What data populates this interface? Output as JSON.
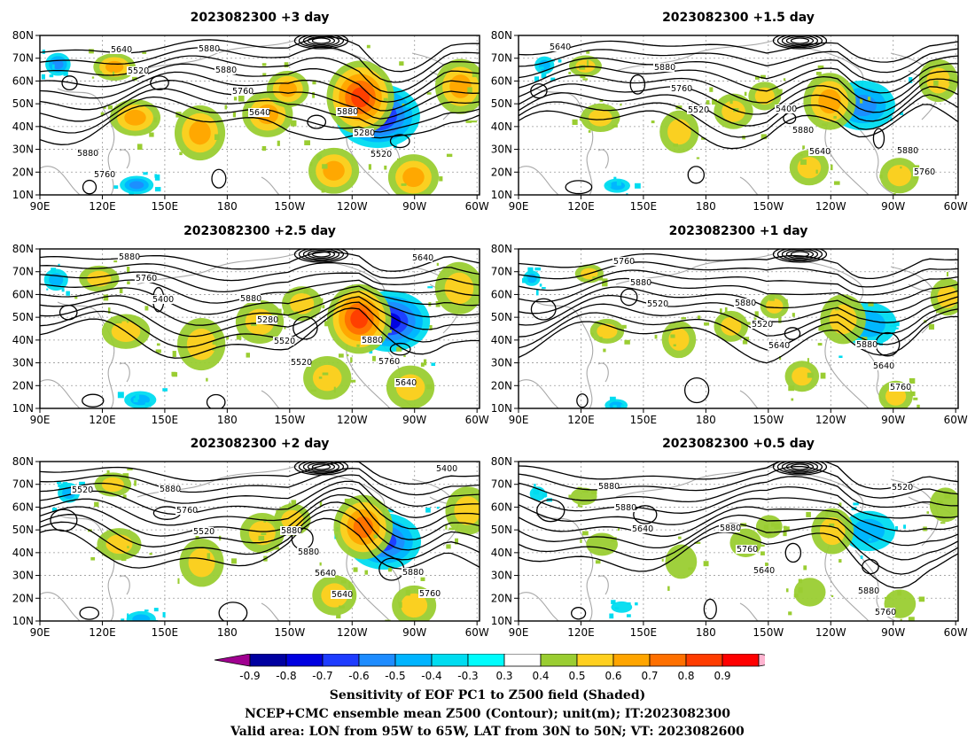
{
  "panels": [
    {
      "title": "2023082300 +3 day",
      "strength": 1.0,
      "seed": 3,
      "contour_labels": [
        "5520",
        "5640",
        "5520",
        "5640",
        "5760",
        "5280",
        "5760",
        "5880",
        "5880",
        "5880",
        "5880"
      ]
    },
    {
      "title": "2023082300 +1.5 day",
      "strength": 0.55,
      "seed": 7,
      "contour_labels": [
        "5520",
        "5640",
        "5640",
        "5760",
        "5880",
        "5760",
        "5880",
        "5400",
        "5880"
      ]
    },
    {
      "title": "2023082300 +2.5 day",
      "strength": 0.9,
      "seed": 11,
      "contour_labels": [
        "5520",
        "5640",
        "5400",
        "5520",
        "5640",
        "5760",
        "5280",
        "5760",
        "5880",
        "5880",
        "5880"
      ]
    },
    {
      "title": "2023082300 +1 day",
      "strength": 0.35,
      "seed": 5,
      "contour_labels": [
        "5520",
        "5640",
        "5760",
        "5880",
        "5520",
        "5640",
        "5760",
        "5880",
        "5880"
      ]
    },
    {
      "title": "2023082300 +2 day",
      "strength": 0.75,
      "seed": 13,
      "contour_labels": [
        "5640",
        "5520",
        "5520",
        "5640",
        "5400",
        "5760",
        "5880",
        "5760",
        "5880",
        "5880",
        "5880"
      ]
    },
    {
      "title": "2023082300 +0.5 day",
      "strength": 0.25,
      "seed": 17,
      "contour_labels": [
        "5520",
        "5640",
        "5640",
        "5760",
        "5880",
        "5760",
        "5880",
        "5880",
        "5880"
      ]
    }
  ],
  "axes": {
    "lat_ticks": [
      "80N",
      "70N",
      "60N",
      "50N",
      "40N",
      "30N",
      "20N",
      "10N"
    ],
    "lon_ticks": [
      "90E",
      "120E",
      "150E",
      "180",
      "150W",
      "120W",
      "90W",
      "60W"
    ]
  },
  "colorbar": {
    "levels": [
      "-0.9",
      "-0.8",
      "-0.7",
      "-0.6",
      "-0.5",
      "-0.4",
      "-0.3",
      "0.3",
      "0.4",
      "0.5",
      "0.6",
      "0.7",
      "0.8",
      "0.9"
    ],
    "colors": [
      "#a00090",
      "#0000a0",
      "#0000e0",
      "#1e3cff",
      "#1e8cff",
      "#00b4ff",
      "#00dcf0",
      "#00fcfc",
      "#ffffff",
      "#9acd32",
      "#ffd020",
      "#ffa500",
      "#ff7000",
      "#ff3c00",
      "#ff0000",
      "#ffb4d0"
    ]
  },
  "captions": {
    "line1": "Sensitivity of EOF PC1 to Z500 field (Shaded)",
    "line2": "NCEP+CMC ensemble mean Z500 (Contour); unit(m); IT:2023082300",
    "line3": "Valid area: LON from 95W to 65W, LAT from 30N to 50N; VT: 2023082600"
  }
}
